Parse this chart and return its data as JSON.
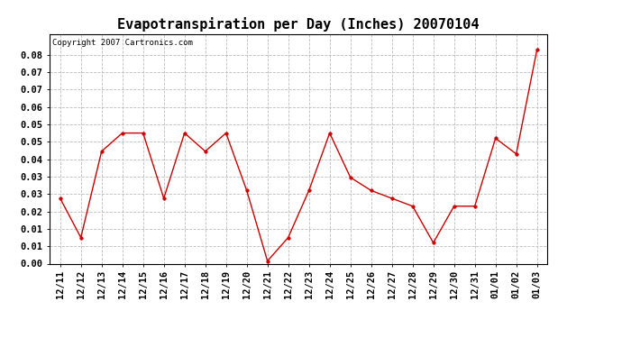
{
  "title": "Evapotranspiration per Day (Inches) 20070104",
  "copyright_text": "Copyright 2007 Cartronics.com",
  "labels": [
    "12/11",
    "12/12",
    "12/13",
    "12/14",
    "12/15",
    "12/16",
    "12/17",
    "12/18",
    "12/19",
    "12/20",
    "12/21",
    "12/22",
    "12/23",
    "12/24",
    "12/25",
    "12/26",
    "12/27",
    "12/28",
    "12/29",
    "12/30",
    "12/31",
    "01/01",
    "01/02",
    "01/03"
  ],
  "values": [
    0.025,
    0.01,
    0.043,
    0.05,
    0.05,
    0.025,
    0.05,
    0.043,
    0.05,
    0.028,
    0.001,
    0.01,
    0.028,
    0.05,
    0.033,
    0.028,
    0.025,
    0.022,
    0.008,
    0.022,
    0.022,
    0.048,
    0.042,
    0.082
  ],
  "line_color": "#cc0000",
  "marker": "o",
  "marker_size": 2.5,
  "ylim_min": 0.0,
  "ylim_max": 0.088,
  "ytick_positions": [
    0.0,
    0.00667,
    0.01333,
    0.02,
    0.02667,
    0.03333,
    0.04,
    0.04667,
    0.05333,
    0.06,
    0.06667,
    0.07333,
    0.08
  ],
  "ytick_labels": [
    "0.00",
    "0.01",
    "0.01",
    "0.02",
    "0.03",
    "0.03",
    "0.04",
    "0.05",
    "0.05",
    "0.06",
    "0.07",
    "0.07",
    "0.08"
  ],
  "background_color": "#ffffff",
  "grid_color": "#bbbbbb",
  "title_fontsize": 11,
  "copyright_fontsize": 6.5,
  "tick_fontsize": 7.5,
  "line_width": 1.0
}
